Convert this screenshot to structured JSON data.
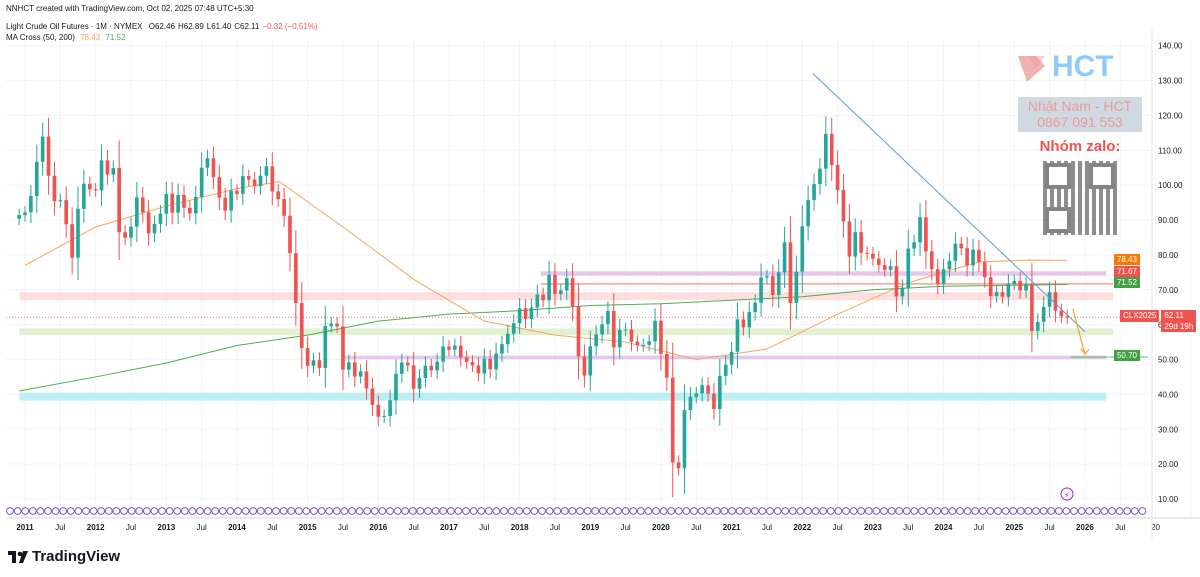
{
  "header": {
    "created_line": "NNHCT created with TradingView.com, Oct 02, 2025 07:48 UTC+5:30",
    "symbol_line": "Light Crude Oil Futures · 1M · NYMEX",
    "open": "O62.46",
    "high": "H62.89",
    "low": "L61.40",
    "close": "C62.11",
    "change": "−0.32 (−0.51%)",
    "indicator": "MA Cross (50, 200)",
    "ma50_value": "78.43",
    "ma200_value": "71.52"
  },
  "watermark": {
    "brand": "HCT",
    "contact_name": "Nhật Nam - HCT",
    "phone": "0867 091 553",
    "group_label": "Nhóm zalo:"
  },
  "price_tags": {
    "symbol": "CLX2025",
    "price": "62.11",
    "countdown": "29d 19h",
    "ma50": "78.43",
    "red_level": "71.67",
    "ma200": "71.52",
    "target": "50.70"
  },
  "footer": {
    "logo_text": "TradingView"
  },
  "colors": {
    "up": "#26a69a",
    "down": "#ef5350",
    "ma50": "#f7a35c",
    "ma200": "#4caf50",
    "trendline": "#5b9bd5",
    "projection": "#f5a623"
  },
  "chart_data": {
    "type": "candlestick",
    "interval": "1M",
    "y_axis_ticks": [
      10,
      20,
      30,
      40,
      50,
      60,
      70,
      80,
      90,
      100,
      110,
      120,
      130,
      140
    ],
    "x_axis_ticks": [
      "2011",
      "Jul",
      "2012",
      "Jul",
      "2013",
      "Jul",
      "2014",
      "Jul",
      "2015",
      "Jul",
      "2016",
      "Jul",
      "2017",
      "Jul",
      "2018",
      "Jul",
      "2019",
      "Jul",
      "2020",
      "Jul",
      "2021",
      "Jul",
      "2022",
      "Jul",
      "2023",
      "Jul",
      "2024",
      "Jul",
      "2025",
      "Jul",
      "2026",
      "Jul",
      "20"
    ],
    "ylim": [
      5,
      145
    ],
    "xlim": [
      2010.9,
      2027.3
    ],
    "closes": [
      [
        2010.917,
        91.4
      ],
      [
        2011.0,
        92.2
      ],
      [
        2011.083,
        96.9
      ],
      [
        2011.167,
        106.7
      ],
      [
        2011.25,
        113.9
      ],
      [
        2011.333,
        102.7
      ],
      [
        2011.417,
        95.4
      ],
      [
        2011.5,
        95.7
      ],
      [
        2011.583,
        88.8
      ],
      [
        2011.667,
        79.2
      ],
      [
        2011.75,
        93.2
      ],
      [
        2011.833,
        100.4
      ],
      [
        2011.917,
        98.8
      ],
      [
        2012.0,
        98.5
      ],
      [
        2012.083,
        107.1
      ],
      [
        2012.167,
        103.0
      ],
      [
        2012.25,
        104.9
      ],
      [
        2012.333,
        86.5
      ],
      [
        2012.417,
        84.9
      ],
      [
        2012.5,
        88.1
      ],
      [
        2012.583,
        96.5
      ],
      [
        2012.667,
        92.2
      ],
      [
        2012.75,
        86.2
      ],
      [
        2012.833,
        88.9
      ],
      [
        2012.917,
        91.8
      ],
      [
        2013.0,
        97.5
      ],
      [
        2013.083,
        92.1
      ],
      [
        2013.167,
        97.2
      ],
      [
        2013.25,
        93.5
      ],
      [
        2013.333,
        91.9
      ],
      [
        2013.417,
        96.6
      ],
      [
        2013.5,
        105.0
      ],
      [
        2013.583,
        107.7
      ],
      [
        2013.667,
        102.3
      ],
      [
        2013.75,
        96.4
      ],
      [
        2013.833,
        92.7
      ],
      [
        2013.917,
        98.4
      ],
      [
        2014.0,
        97.5
      ],
      [
        2014.083,
        102.6
      ],
      [
        2014.167,
        101.6
      ],
      [
        2014.25,
        99.7
      ],
      [
        2014.333,
        102.7
      ],
      [
        2014.417,
        105.4
      ],
      [
        2014.5,
        98.2
      ],
      [
        2014.583,
        96.0
      ],
      [
        2014.667,
        91.2
      ],
      [
        2014.75,
        80.5
      ],
      [
        2014.833,
        66.2
      ],
      [
        2014.917,
        53.3
      ],
      [
        2015.0,
        48.2
      ],
      [
        2015.083,
        49.8
      ],
      [
        2015.167,
        47.6
      ],
      [
        2015.25,
        59.6
      ],
      [
        2015.333,
        60.3
      ],
      [
        2015.417,
        59.5
      ],
      [
        2015.5,
        47.1
      ],
      [
        2015.583,
        49.2
      ],
      [
        2015.667,
        45.1
      ],
      [
        2015.75,
        46.6
      ],
      [
        2015.833,
        41.7
      ],
      [
        2015.917,
        37.0
      ],
      [
        2016.0,
        33.6
      ],
      [
        2016.083,
        33.8
      ],
      [
        2016.167,
        38.3
      ],
      [
        2016.25,
        45.9
      ],
      [
        2016.333,
        49.1
      ],
      [
        2016.417,
        48.3
      ],
      [
        2016.5,
        41.6
      ],
      [
        2016.583,
        44.7
      ],
      [
        2016.667,
        48.2
      ],
      [
        2016.75,
        46.9
      ],
      [
        2016.833,
        49.4
      ],
      [
        2016.917,
        53.7
      ],
      [
        2017.0,
        52.8
      ],
      [
        2017.083,
        54.0
      ],
      [
        2017.167,
        50.6
      ],
      [
        2017.25,
        49.3
      ],
      [
        2017.333,
        48.3
      ],
      [
        2017.417,
        46.0
      ],
      [
        2017.5,
        50.2
      ],
      [
        2017.583,
        47.2
      ],
      [
        2017.667,
        51.7
      ],
      [
        2017.75,
        54.4
      ],
      [
        2017.833,
        57.4
      ],
      [
        2017.917,
        60.4
      ],
      [
        2018.0,
        64.7
      ],
      [
        2018.083,
        61.6
      ],
      [
        2018.167,
        64.9
      ],
      [
        2018.25,
        68.6
      ],
      [
        2018.333,
        67.0
      ],
      [
        2018.417,
        74.2
      ],
      [
        2018.5,
        68.8
      ],
      [
        2018.583,
        69.8
      ],
      [
        2018.667,
        73.3
      ],
      [
        2018.75,
        65.3
      ],
      [
        2018.833,
        50.9
      ],
      [
        2018.917,
        45.4
      ],
      [
        2019.0,
        53.8
      ],
      [
        2019.083,
        57.2
      ],
      [
        2019.167,
        60.1
      ],
      [
        2019.25,
        63.9
      ],
      [
        2019.333,
        53.5
      ],
      [
        2019.417,
        58.5
      ],
      [
        2019.5,
        58.6
      ],
      [
        2019.583,
        55.1
      ],
      [
        2019.667,
        54.1
      ],
      [
        2019.75,
        54.2
      ],
      [
        2019.833,
        55.2
      ],
      [
        2019.917,
        61.1
      ],
      [
        2020.0,
        51.6
      ],
      [
        2020.083,
        44.8
      ],
      [
        2020.167,
        20.5
      ],
      [
        2020.25,
        18.8
      ],
      [
        2020.333,
        35.5
      ],
      [
        2020.417,
        39.3
      ],
      [
        2020.5,
        40.3
      ],
      [
        2020.583,
        42.6
      ],
      [
        2020.667,
        40.2
      ],
      [
        2020.75,
        35.8
      ],
      [
        2020.833,
        45.3
      ],
      [
        2020.917,
        48.5
      ],
      [
        2021.0,
        52.2
      ],
      [
        2021.083,
        61.5
      ],
      [
        2021.167,
        59.2
      ],
      [
        2021.25,
        63.6
      ],
      [
        2021.333,
        66.3
      ],
      [
        2021.417,
        73.5
      ],
      [
        2021.5,
        73.9
      ],
      [
        2021.583,
        68.5
      ],
      [
        2021.667,
        75.0
      ],
      [
        2021.75,
        83.6
      ],
      [
        2021.833,
        66.2
      ],
      [
        2021.917,
        75.2
      ],
      [
        2022.0,
        88.2
      ],
      [
        2022.083,
        95.7
      ],
      [
        2022.167,
        100.3
      ],
      [
        2022.25,
        104.7
      ],
      [
        2022.333,
        114.7
      ],
      [
        2022.417,
        105.8
      ],
      [
        2022.5,
        98.6
      ],
      [
        2022.583,
        89.6
      ],
      [
        2022.667,
        79.5
      ],
      [
        2022.75,
        86.5
      ],
      [
        2022.833,
        80.6
      ],
      [
        2022.917,
        80.3
      ],
      [
        2023.0,
        78.9
      ],
      [
        2023.083,
        77.1
      ],
      [
        2023.167,
        75.7
      ],
      [
        2023.25,
        76.8
      ],
      [
        2023.333,
        68.1
      ],
      [
        2023.417,
        70.6
      ],
      [
        2023.5,
        81.8
      ],
      [
        2023.583,
        83.6
      ],
      [
        2023.667,
        90.8
      ],
      [
        2023.75,
        81.0
      ],
      [
        2023.833,
        75.9
      ],
      [
        2023.917,
        71.7
      ],
      [
        2024.0,
        75.9
      ],
      [
        2024.083,
        78.3
      ],
      [
        2024.167,
        83.2
      ],
      [
        2024.25,
        81.9
      ],
      [
        2024.333,
        76.99
      ],
      [
        2024.417,
        81.5
      ],
      [
        2024.5,
        77.9
      ],
      [
        2024.583,
        73.6
      ],
      [
        2024.667,
        68.2
      ],
      [
        2024.75,
        69.3
      ],
      [
        2024.833,
        68.0
      ],
      [
        2024.917,
        71.7
      ],
      [
        2025.0,
        72.5
      ],
      [
        2025.083,
        69.8
      ],
      [
        2025.167,
        71.5
      ],
      [
        2025.25,
        58.2
      ],
      [
        2025.333,
        60.8
      ],
      [
        2025.417,
        65.1
      ],
      [
        2025.5,
        69.3
      ],
      [
        2025.583,
        64.0
      ],
      [
        2025.667,
        62.4
      ],
      [
        2025.75,
        62.11
      ]
    ],
    "ma50_points": [
      [
        2011.0,
        77
      ],
      [
        2012.0,
        88
      ],
      [
        2013.0,
        94
      ],
      [
        2014.0,
        99
      ],
      [
        2014.6,
        101
      ],
      [
        2015.5,
        88
      ],
      [
        2016.5,
        73
      ],
      [
        2017.5,
        61
      ],
      [
        2018.5,
        57
      ],
      [
        2019.5,
        55
      ],
      [
        2020.5,
        50
      ],
      [
        2021.5,
        53
      ],
      [
        2022.5,
        63
      ],
      [
        2023.5,
        72
      ],
      [
        2024.5,
        78
      ],
      [
        2025.2,
        78.5
      ],
      [
        2025.75,
        78.43
      ]
    ],
    "ma200_points": [
      [
        2010.92,
        41
      ],
      [
        2012.0,
        45
      ],
      [
        2013.0,
        49
      ],
      [
        2014.0,
        54
      ],
      [
        2015.0,
        57
      ],
      [
        2016.0,
        61
      ],
      [
        2017.0,
        63
      ],
      [
        2018.0,
        64
      ],
      [
        2019.0,
        65.5
      ],
      [
        2020.0,
        66
      ],
      [
        2021.0,
        67
      ],
      [
        2022.0,
        68
      ],
      [
        2023.0,
        70
      ],
      [
        2024.0,
        71
      ],
      [
        2025.0,
        71.3
      ],
      [
        2025.75,
        71.52
      ]
    ],
    "trendline": [
      [
        2022.15,
        132
      ],
      [
        2026.0,
        58
      ]
    ],
    "projection": [
      [
        2025.83,
        64.5
      ],
      [
        2026.0,
        51.5
      ]
    ],
    "levels": [
      {
        "type": "zone",
        "color": "#e1bee7",
        "from": [
          2018.3,
          75.3
        ],
        "to": [
          2026.3,
          74.0
        ]
      },
      {
        "type": "zone",
        "color": "#fdd9d9",
        "from": [
          2010.92,
          69.3
        ],
        "to": [
          2026.4,
          67.0
        ]
      },
      {
        "type": "zone",
        "color": "#dcedc8",
        "from": [
          2010.92,
          58.9
        ],
        "to": [
          2026.4,
          57.0
        ]
      },
      {
        "type": "zone",
        "color": "#e1bee7",
        "from": [
          2015.5,
          51.1
        ],
        "to": [
          2026.3,
          50.1
        ]
      },
      {
        "type": "zone",
        "color": "#b2ebf2",
        "from": [
          2010.92,
          40.5
        ],
        "to": [
          2026.3,
          38.2
        ]
      },
      {
        "type": "line",
        "color": "#ef5350",
        "from": [
          2018.3,
          71.67
        ],
        "to": [
          2026.4,
          71.67
        ]
      },
      {
        "type": "line",
        "color": "#4caf50",
        "from": [
          2025.8,
          50.7
        ],
        "to": [
          2026.9,
          50.7
        ]
      }
    ],
    "title": "Light Crude Oil Futures · 1M · NYMEX"
  }
}
